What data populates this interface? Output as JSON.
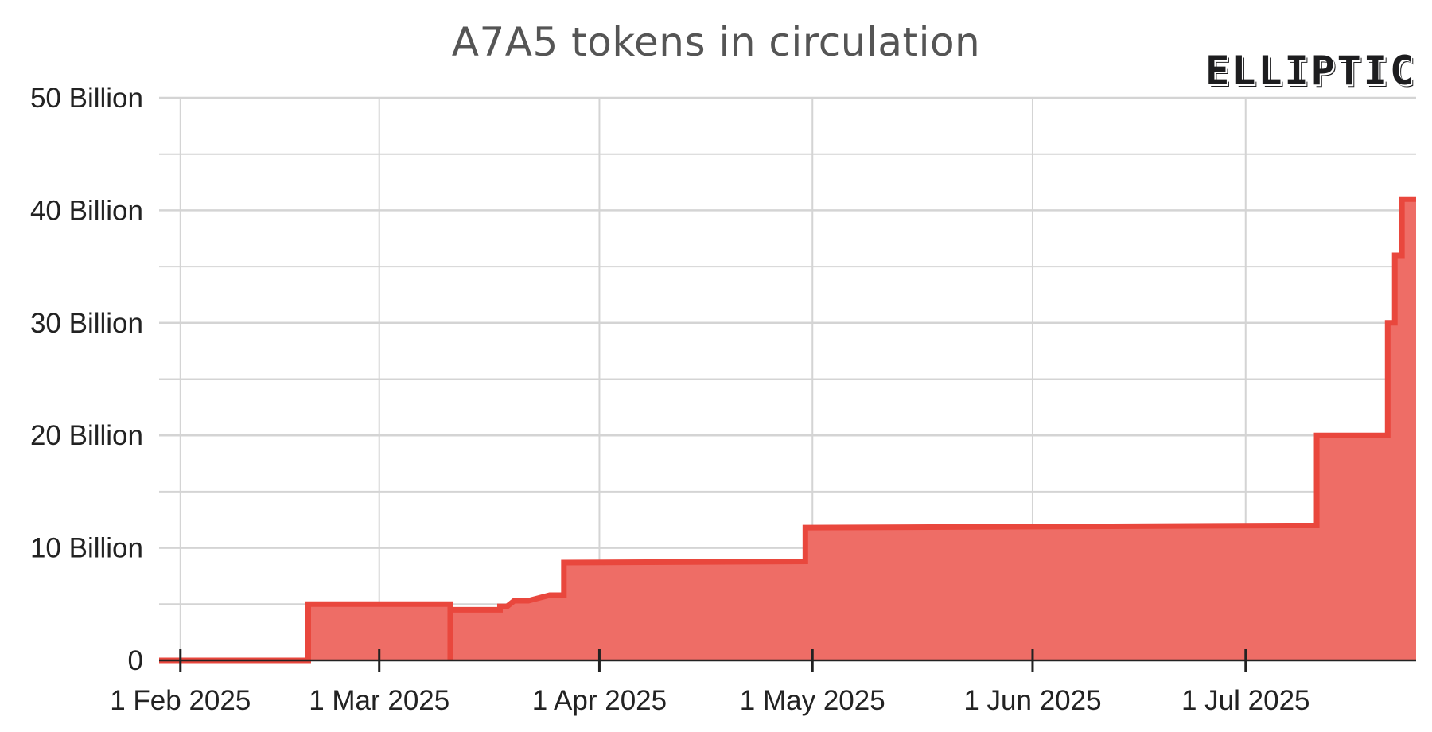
{
  "brand": {
    "name": "ELLIPTIC"
  },
  "colors": {
    "area_fill": "#ee6d66",
    "line": "#e9473d",
    "grid": "#d4d4d4",
    "axis": "#222222",
    "title": "#555555"
  },
  "chart_data": {
    "type": "area",
    "title": "A7A5 tokens in circulation",
    "xlabel": "",
    "ylabel": "",
    "step": true,
    "grid": true,
    "legend": "none",
    "xlim": [
      "2025-01-29",
      "2025-07-25"
    ],
    "ylim": [
      0,
      50
    ],
    "y_unit": "Billion",
    "y_ticks": [
      {
        "value": 0,
        "label": "0"
      },
      {
        "value": 10,
        "label": "10 Billion"
      },
      {
        "value": 20,
        "label": "20 Billion"
      },
      {
        "value": 30,
        "label": "30 Billion"
      },
      {
        "value": 40,
        "label": "40 Billion"
      },
      {
        "value": 50,
        "label": "50 Billion"
      }
    ],
    "y_minor_ticks": [
      5,
      15,
      25,
      35,
      45
    ],
    "x_ticks": [
      {
        "date": "2025-02-01",
        "label": "1 Feb 2025"
      },
      {
        "date": "2025-03-01",
        "label": "1 Mar 2025"
      },
      {
        "date": "2025-04-01",
        "label": "1 Apr 2025"
      },
      {
        "date": "2025-05-01",
        "label": "1 May 2025"
      },
      {
        "date": "2025-06-01",
        "label": "1 Jun 2025"
      },
      {
        "date": "2025-07-01",
        "label": "1 Jul 2025"
      }
    ],
    "series": [
      {
        "points": [
          {
            "x": "2025-01-29",
            "y": 0
          },
          {
            "x": "2025-02-19",
            "y": 0
          },
          {
            "x": "2025-02-19",
            "y": 5
          },
          {
            "x": "2025-03-11",
            "y": 5
          },
          {
            "x": "2025-03-11",
            "y": 0
          },
          {
            "x": "2025-03-11",
            "y": 4.5
          },
          {
            "x": "2025-03-18",
            "y": 4.5
          },
          {
            "x": "2025-03-18",
            "y": 4.8
          },
          {
            "x": "2025-03-19",
            "y": 4.8
          },
          {
            "x": "2025-03-20",
            "y": 5.3
          },
          {
            "x": "2025-03-22",
            "y": 5.3
          },
          {
            "x": "2025-03-25",
            "y": 5.8
          },
          {
            "x": "2025-03-27",
            "y": 5.8
          },
          {
            "x": "2025-03-27",
            "y": 8.7
          },
          {
            "x": "2025-04-30",
            "y": 8.8
          },
          {
            "x": "2025-04-30",
            "y": 11.8
          },
          {
            "x": "2025-07-11",
            "y": 12
          },
          {
            "x": "2025-07-11",
            "y": 20
          },
          {
            "x": "2025-07-21",
            "y": 20
          },
          {
            "x": "2025-07-21",
            "y": 30
          },
          {
            "x": "2025-07-22",
            "y": 30
          },
          {
            "x": "2025-07-22",
            "y": 36
          },
          {
            "x": "2025-07-23",
            "y": 36
          },
          {
            "x": "2025-07-23",
            "y": 41
          },
          {
            "x": "2025-07-25",
            "y": 41
          }
        ]
      }
    ]
  }
}
